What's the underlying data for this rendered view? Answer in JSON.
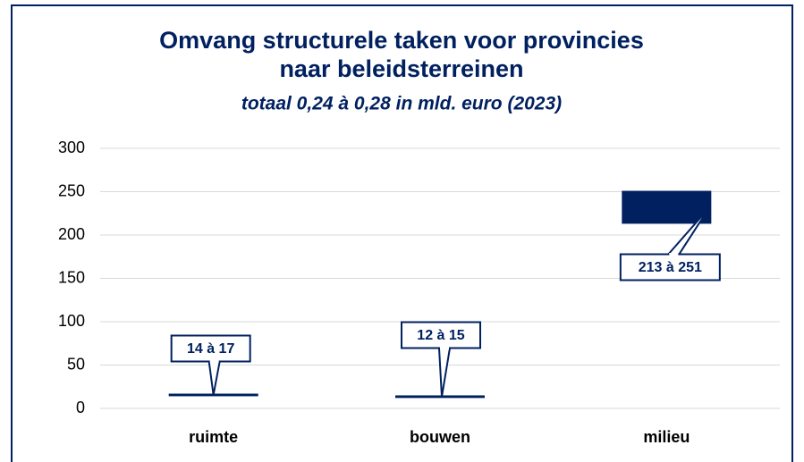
{
  "chart_data": {
    "type": "range_bar",
    "title": "Omvang structurele taken voor provincies",
    "title_line2": "naar beleidsterreinen",
    "subtitle": "totaal 0,24 à 0,28 in mld. euro (2023)",
    "categories": [
      "ruimte",
      "bouwen",
      "milieu"
    ],
    "low": [
      14,
      12,
      213
    ],
    "high": [
      17,
      15,
      251
    ],
    "value_labels": [
      "14 à 17",
      "12 à 15",
      "213 à 251"
    ],
    "color": "#002060",
    "ylim": [
      0,
      300
    ],
    "yticks": [
      0,
      50,
      100,
      150,
      200,
      250,
      300
    ],
    "grid": true
  }
}
